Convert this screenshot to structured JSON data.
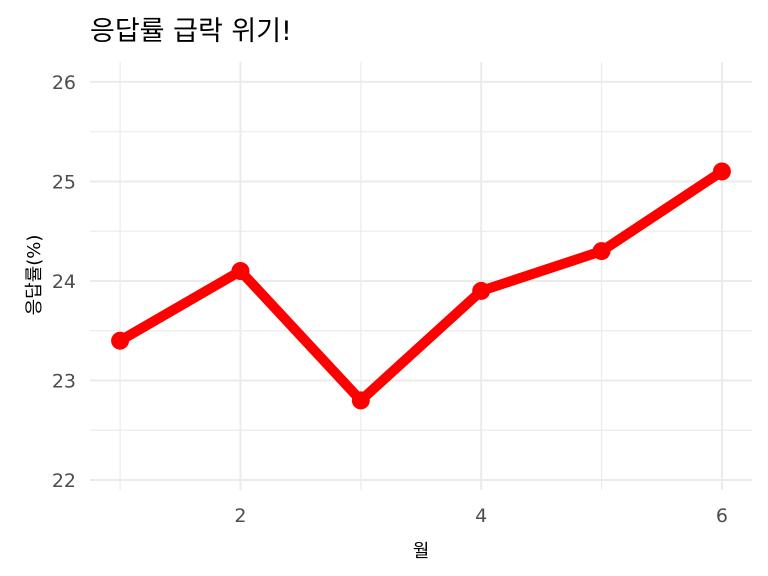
{
  "chart_data": {
    "type": "line",
    "title": "응답률 급락 위기!",
    "xlabel": "월",
    "ylabel": "응답률(%)",
    "x": [
      1,
      2,
      3,
      4,
      5,
      6
    ],
    "series": [
      {
        "values": [
          23.4,
          24.1,
          22.8,
          23.9,
          24.3,
          25.1
        ]
      }
    ],
    "xlim": [
      0.75,
      6.25
    ],
    "ylim": [
      21.9,
      26.2
    ],
    "x_ticks": [
      2,
      4,
      6
    ],
    "y_ticks": [
      22,
      23,
      24,
      25,
      26
    ],
    "grid": true,
    "legend": "none",
    "line_color": "#ff0000",
    "grid_color": "#ebebeb"
  }
}
